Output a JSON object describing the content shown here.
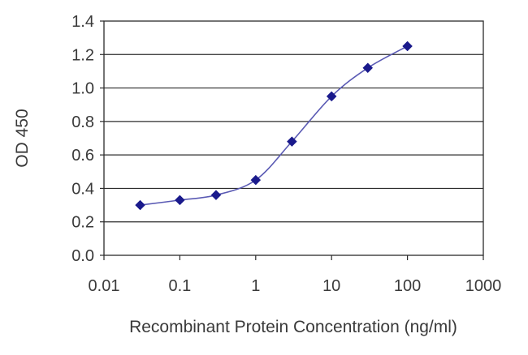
{
  "chart_data": {
    "type": "line",
    "title": "",
    "xlabel": "Recombinant Protein Concentration (ng/ml)",
    "ylabel": "OD 450",
    "x_scale": "log",
    "xlim": [
      0.01,
      1000
    ],
    "ylim": [
      0.0,
      1.4
    ],
    "x_ticks": [
      "0.01",
      "0.1",
      "1",
      "10",
      "100",
      "1000"
    ],
    "y_ticks": [
      "0.0",
      "0.2",
      "0.4",
      "0.6",
      "0.8",
      "1.0",
      "1.2",
      "1.4"
    ],
    "grid": "horizontal",
    "legend": "none",
    "series": [
      {
        "x": [
          0.03,
          0.1,
          0.3,
          1,
          3,
          10,
          30,
          100
        ],
        "y": [
          0.3,
          0.33,
          0.36,
          0.45,
          0.68,
          0.95,
          1.12,
          1.25
        ],
        "color": "#1a1a8c",
        "line_color": "#5a5ab4"
      }
    ]
  }
}
